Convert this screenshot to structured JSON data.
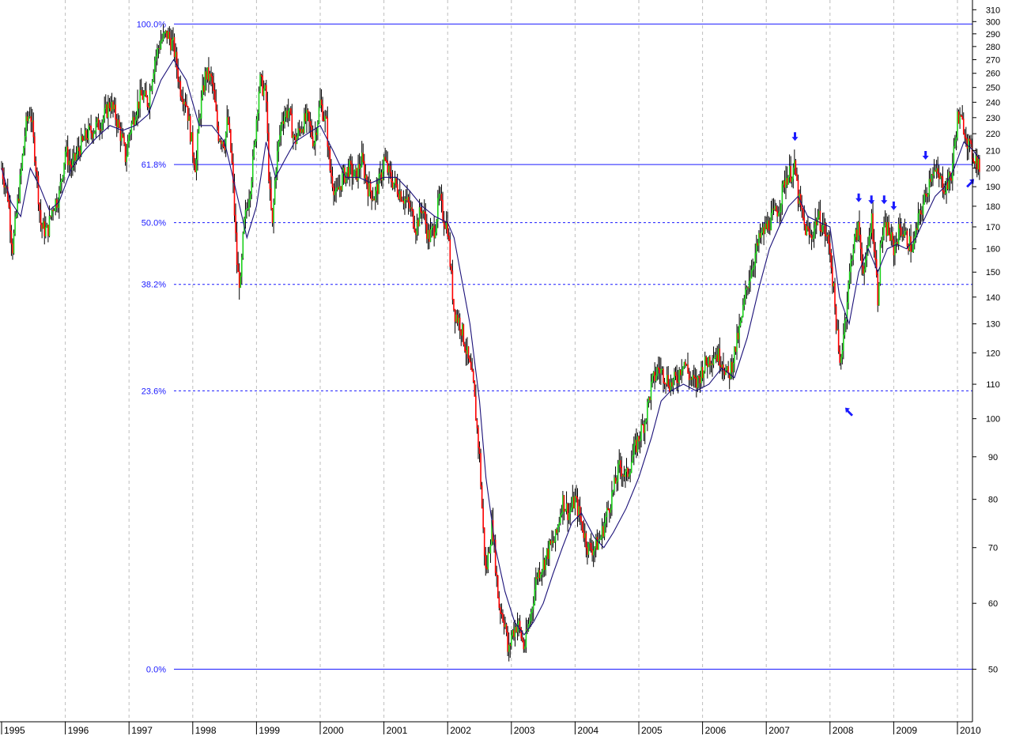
{
  "chart_data": {
    "type": "candlestick",
    "x_axis": {
      "labels": [
        "1995",
        "1996",
        "1997",
        "1998",
        "1999",
        "2000",
        "2001",
        "2002",
        "2003",
        "2004",
        "2005",
        "2006",
        "2007",
        "2008",
        "2009",
        "2010"
      ]
    },
    "y_axis": {
      "scale": "log",
      "ylim": [
        44,
        315
      ],
      "position": "right",
      "tick_labels": [
        "310",
        "300",
        "290",
        "280",
        "270",
        "260",
        "250",
        "240",
        "230",
        "220",
        "210",
        "200",
        "190",
        "180",
        "170",
        "160",
        "150",
        "140",
        "130",
        "120",
        "110",
        "100",
        "90",
        "80",
        "70",
        "60",
        "50"
      ]
    },
    "grid": {
      "vertical_year_lines": true,
      "style": "dashed",
      "color": "#bdbdbd"
    },
    "fibonacci_levels": [
      {
        "label": "100.0%",
        "value": 298,
        "style": "solid"
      },
      {
        "label": "61.8%",
        "value": 202,
        "style": "solid"
      },
      {
        "label": "50.0%",
        "value": 172,
        "style": "dashed"
      },
      {
        "label": "38.2%",
        "value": 145,
        "style": "dashed"
      },
      {
        "label": "23.6%",
        "value": 108,
        "style": "dashed"
      },
      {
        "label": "0.0%",
        "value": 50,
        "style": "solid"
      }
    ],
    "series": [
      {
        "kind": "price",
        "colors": {
          "up": "#1bd11b",
          "down": "#ff0000",
          "wick": "#000000"
        },
        "points": [
          [
            1995.0,
            200
          ],
          [
            1995.1,
            185
          ],
          [
            1995.17,
            160
          ],
          [
            1995.28,
            190
          ],
          [
            1995.38,
            225
          ],
          [
            1995.45,
            235
          ],
          [
            1995.53,
            205
          ],
          [
            1995.62,
            170
          ],
          [
            1995.72,
            168
          ],
          [
            1995.8,
            180
          ],
          [
            1995.9,
            185
          ],
          [
            1996.0,
            210
          ],
          [
            1996.1,
            200
          ],
          [
            1996.2,
            210
          ],
          [
            1996.35,
            220
          ],
          [
            1996.5,
            225
          ],
          [
            1996.6,
            230
          ],
          [
            1996.7,
            240
          ],
          [
            1996.8,
            230
          ],
          [
            1996.9,
            215
          ],
          [
            1996.95,
            205
          ],
          [
            1997.0,
            220
          ],
          [
            1997.1,
            235
          ],
          [
            1997.2,
            245
          ],
          [
            1997.3,
            240
          ],
          [
            1997.4,
            270
          ],
          [
            1997.5,
            285
          ],
          [
            1997.6,
            290
          ],
          [
            1997.7,
            280
          ],
          [
            1997.8,
            250
          ],
          [
            1997.9,
            240
          ],
          [
            1998.0,
            210
          ],
          [
            1998.05,
            200
          ],
          [
            1998.1,
            230
          ],
          [
            1998.2,
            260
          ],
          [
            1998.3,
            255
          ],
          [
            1998.4,
            220
          ],
          [
            1998.5,
            215
          ],
          [
            1998.55,
            230
          ],
          [
            1998.62,
            200
          ],
          [
            1998.7,
            150
          ],
          [
            1998.75,
            145
          ],
          [
            1998.8,
            170
          ],
          [
            1998.9,
            190
          ],
          [
            1998.95,
            205
          ],
          [
            1999.0,
            230
          ],
          [
            1999.05,
            255
          ],
          [
            1999.15,
            245
          ],
          [
            1999.2,
            190
          ],
          [
            1999.25,
            170
          ],
          [
            1999.3,
            200
          ],
          [
            1999.4,
            230
          ],
          [
            1999.5,
            235
          ],
          [
            1999.6,
            215
          ],
          [
            1999.7,
            225
          ],
          [
            1999.8,
            230
          ],
          [
            1999.9,
            215
          ],
          [
            2000.0,
            240
          ],
          [
            2000.1,
            225
          ],
          [
            2000.15,
            200
          ],
          [
            2000.25,
            185
          ],
          [
            2000.35,
            195
          ],
          [
            2000.45,
            200
          ],
          [
            2000.55,
            195
          ],
          [
            2000.65,
            205
          ],
          [
            2000.75,
            190
          ],
          [
            2000.85,
            185
          ],
          [
            2000.95,
            195
          ],
          [
            2001.0,
            205
          ],
          [
            2001.1,
            195
          ],
          [
            2001.2,
            190
          ],
          [
            2001.3,
            185
          ],
          [
            2001.4,
            180
          ],
          [
            2001.5,
            170
          ],
          [
            2001.6,
            180
          ],
          [
            2001.7,
            165
          ],
          [
            2001.8,
            170
          ],
          [
            2001.87,
            185
          ],
          [
            2001.93,
            175
          ],
          [
            2002.0,
            170
          ],
          [
            2002.05,
            150
          ],
          [
            2002.1,
            135
          ],
          [
            2002.2,
            130
          ],
          [
            2002.3,
            120
          ],
          [
            2002.4,
            110
          ],
          [
            2002.5,
            90
          ],
          [
            2002.55,
            75
          ],
          [
            2002.6,
            65
          ],
          [
            2002.65,
            70
          ],
          [
            2002.7,
            75
          ],
          [
            2002.8,
            60
          ],
          [
            2002.9,
            57
          ],
          [
            2002.95,
            52
          ],
          [
            2003.0,
            55
          ],
          [
            2003.1,
            57
          ],
          [
            2003.2,
            53
          ],
          [
            2003.3,
            58
          ],
          [
            2003.4,
            65
          ],
          [
            2003.5,
            67
          ],
          [
            2003.6,
            70
          ],
          [
            2003.7,
            72
          ],
          [
            2003.8,
            80
          ],
          [
            2003.9,
            77
          ],
          [
            2004.0,
            80
          ],
          [
            2004.1,
            75
          ],
          [
            2004.2,
            70
          ],
          [
            2004.3,
            70
          ],
          [
            2004.4,
            72
          ],
          [
            2004.5,
            77
          ],
          [
            2004.6,
            82
          ],
          [
            2004.7,
            88
          ],
          [
            2004.8,
            85
          ],
          [
            2004.9,
            90
          ],
          [
            2005.0,
            95
          ],
          [
            2005.1,
            100
          ],
          [
            2005.2,
            110
          ],
          [
            2005.3,
            115
          ],
          [
            2005.4,
            113
          ],
          [
            2005.5,
            110
          ],
          [
            2005.6,
            112
          ],
          [
            2005.7,
            118
          ],
          [
            2005.8,
            112
          ],
          [
            2005.9,
            110
          ],
          [
            2006.0,
            115
          ],
          [
            2006.1,
            118
          ],
          [
            2006.2,
            120
          ],
          [
            2006.3,
            118
          ],
          [
            2006.4,
            112
          ],
          [
            2006.5,
            120
          ],
          [
            2006.6,
            130
          ],
          [
            2006.7,
            145
          ],
          [
            2006.8,
            155
          ],
          [
            2006.9,
            165
          ],
          [
            2007.0,
            170
          ],
          [
            2007.1,
            175
          ],
          [
            2007.2,
            180
          ],
          [
            2007.3,
            195
          ],
          [
            2007.45,
            200
          ],
          [
            2007.5,
            185
          ],
          [
            2007.6,
            170
          ],
          [
            2007.7,
            165
          ],
          [
            2007.8,
            175
          ],
          [
            2007.9,
            170
          ],
          [
            2008.0,
            160
          ],
          [
            2008.1,
            130
          ],
          [
            2008.15,
            115
          ],
          [
            2008.25,
            135
          ],
          [
            2008.35,
            160
          ],
          [
            2008.45,
            170
          ],
          [
            2008.5,
            155
          ],
          [
            2008.55,
            150
          ],
          [
            2008.65,
            175
          ],
          [
            2008.7,
            160
          ],
          [
            2008.75,
            140
          ],
          [
            2008.8,
            165
          ],
          [
            2008.9,
            170
          ],
          [
            2009.0,
            160
          ],
          [
            2009.1,
            170
          ],
          [
            2009.2,
            165
          ],
          [
            2009.3,
            160
          ],
          [
            2009.4,
            175
          ],
          [
            2009.5,
            185
          ],
          [
            2009.6,
            200
          ],
          [
            2009.7,
            195
          ],
          [
            2009.8,
            190
          ],
          [
            2009.9,
            195
          ],
          [
            2010.0,
            230
          ],
          [
            2010.1,
            225
          ],
          [
            2010.2,
            210
          ],
          [
            2010.3,
            205
          ],
          [
            2010.35,
            200
          ]
        ]
      },
      {
        "kind": "moving_average",
        "color": "#1a1078",
        "points": [
          [
            1995.0,
            200
          ],
          [
            1995.15,
            182
          ],
          [
            1995.3,
            175
          ],
          [
            1995.45,
            200
          ],
          [
            1995.6,
            190
          ],
          [
            1995.75,
            178
          ],
          [
            1995.9,
            182
          ],
          [
            1996.1,
            200
          ],
          [
            1996.3,
            210
          ],
          [
            1996.5,
            218
          ],
          [
            1996.7,
            225
          ],
          [
            1996.9,
            222
          ],
          [
            1997.1,
            225
          ],
          [
            1997.3,
            232
          ],
          [
            1997.5,
            255
          ],
          [
            1997.7,
            270
          ],
          [
            1997.9,
            255
          ],
          [
            1998.1,
            225
          ],
          [
            1998.3,
            225
          ],
          [
            1998.5,
            215
          ],
          [
            1998.7,
            185
          ],
          [
            1998.85,
            165
          ],
          [
            1999.0,
            180
          ],
          [
            1999.15,
            215
          ],
          [
            1999.3,
            195
          ],
          [
            1999.45,
            205
          ],
          [
            1999.6,
            215
          ],
          [
            1999.8,
            220
          ],
          [
            2000.0,
            225
          ],
          [
            2000.2,
            210
          ],
          [
            2000.4,
            195
          ],
          [
            2000.6,
            195
          ],
          [
            2000.8,
            192
          ],
          [
            2001.0,
            195
          ],
          [
            2001.2,
            195
          ],
          [
            2001.4,
            188
          ],
          [
            2001.6,
            180
          ],
          [
            2001.8,
            175
          ],
          [
            2002.0,
            172
          ],
          [
            2002.1,
            165
          ],
          [
            2002.2,
            150
          ],
          [
            2002.35,
            130
          ],
          [
            2002.5,
            105
          ],
          [
            2002.6,
            85
          ],
          [
            2002.75,
            70
          ],
          [
            2002.9,
            62
          ],
          [
            2003.05,
            57
          ],
          [
            2003.2,
            55
          ],
          [
            2003.35,
            57
          ],
          [
            2003.5,
            60
          ],
          [
            2003.65,
            65
          ],
          [
            2003.8,
            70
          ],
          [
            2003.95,
            75
          ],
          [
            2004.1,
            77
          ],
          [
            2004.3,
            72
          ],
          [
            2004.45,
            70
          ],
          [
            2004.6,
            73
          ],
          [
            2004.8,
            78
          ],
          [
            2005.0,
            85
          ],
          [
            2005.2,
            95
          ],
          [
            2005.35,
            105
          ],
          [
            2005.5,
            108
          ],
          [
            2005.7,
            110
          ],
          [
            2005.9,
            108
          ],
          [
            2006.1,
            110
          ],
          [
            2006.3,
            115
          ],
          [
            2006.5,
            112
          ],
          [
            2006.7,
            125
          ],
          [
            2006.9,
            145
          ],
          [
            2007.05,
            160
          ],
          [
            2007.2,
            170
          ],
          [
            2007.35,
            180
          ],
          [
            2007.5,
            185
          ],
          [
            2007.65,
            175
          ],
          [
            2007.85,
            172
          ],
          [
            2008.0,
            170
          ],
          [
            2008.15,
            140
          ],
          [
            2008.3,
            130
          ],
          [
            2008.45,
            150
          ],
          [
            2008.6,
            160
          ],
          [
            2008.75,
            150
          ],
          [
            2008.9,
            160
          ],
          [
            2009.05,
            162
          ],
          [
            2009.2,
            160
          ],
          [
            2009.35,
            165
          ],
          [
            2009.5,
            175
          ],
          [
            2009.65,
            185
          ],
          [
            2009.8,
            190
          ],
          [
            2009.95,
            200
          ],
          [
            2010.1,
            215
          ],
          [
            2010.25,
            210
          ],
          [
            2010.35,
            205
          ]
        ]
      }
    ],
    "annotations": [
      {
        "type": "arrow",
        "direction": "down",
        "x": 2007.45,
        "value": 218
      },
      {
        "type": "arrow",
        "direction": "up-left",
        "x": 2008.3,
        "value": 102
      },
      {
        "type": "arrow",
        "direction": "down",
        "x": 2008.45,
        "value": 184
      },
      {
        "type": "arrow",
        "direction": "down",
        "x": 2008.65,
        "value": 183
      },
      {
        "type": "arrow",
        "direction": "down",
        "x": 2008.85,
        "value": 183
      },
      {
        "type": "arrow",
        "direction": "down",
        "x": 2009.0,
        "value": 180
      },
      {
        "type": "arrow",
        "direction": "down",
        "x": 2009.5,
        "value": 207
      },
      {
        "type": "arrow",
        "direction": "up-right",
        "x": 2010.2,
        "value": 192
      }
    ]
  }
}
